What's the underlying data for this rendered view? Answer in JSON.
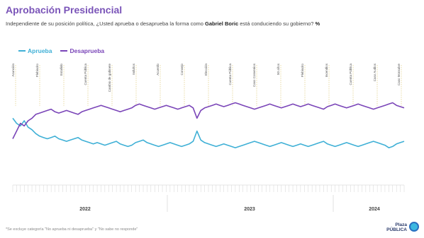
{
  "title": "Aprobación Presidencial",
  "subtitle_pre": "Independiente de su posición política, ¿Usted aprueba o desaprueba la forma como ",
  "subtitle_name": "Gabriel Boric",
  "subtitle_post": " está conduciendo su gobierno? ",
  "subtitle_unit": "%",
  "footnote": "*Se excluye categoría \"No aprueba ni desaprueba\" y \"No sabe no responde\"",
  "logo_text": "Plaza PÚBLICA",
  "colors": {
    "aprueba": "#3fb0d6",
    "desaprueba": "#7a45b8",
    "title": "#7a54b8"
  },
  "chart_data": {
    "type": "line",
    "x_axis_years": [
      "2022",
      "2023",
      "2024"
    ],
    "ylim": [
      0,
      100
    ],
    "series": [
      {
        "name": "Aprueba",
        "values": [
          52,
          48,
          46,
          50,
          45,
          43,
          40,
          38,
          37,
          36,
          37,
          38,
          36,
          35,
          34,
          35,
          36,
          37,
          35,
          34,
          33,
          32,
          33,
          32,
          31,
          32,
          33,
          34,
          32,
          31,
          30,
          31,
          33,
          34,
          35,
          33,
          32,
          31,
          30,
          31,
          32,
          33,
          32,
          31,
          30,
          31,
          32,
          34,
          42,
          35,
          33,
          32,
          31,
          30,
          31,
          32,
          31,
          30,
          29,
          30,
          31,
          32,
          33,
          34,
          33,
          32,
          31,
          30,
          31,
          32,
          33,
          32,
          31,
          30,
          31,
          32,
          31,
          30,
          31,
          32,
          33,
          34,
          32,
          31,
          30,
          31,
          32,
          33,
          32,
          31,
          30,
          31,
          32,
          33,
          34,
          33,
          32,
          31,
          29,
          30,
          32,
          33,
          34
        ]
      },
      {
        "name": "Desaprueba",
        "values": [
          36,
          42,
          48,
          46,
          50,
          52,
          55,
          56,
          57,
          58,
          59,
          57,
          56,
          57,
          58,
          57,
          56,
          55,
          57,
          58,
          59,
          60,
          61,
          62,
          61,
          60,
          59,
          58,
          57,
          58,
          59,
          60,
          62,
          63,
          62,
          61,
          60,
          59,
          60,
          61,
          62,
          61,
          60,
          59,
          60,
          61,
          62,
          60,
          52,
          58,
          60,
          61,
          62,
          63,
          62,
          61,
          62,
          63,
          64,
          63,
          62,
          61,
          60,
          59,
          60,
          61,
          62,
          63,
          62,
          61,
          60,
          61,
          62,
          63,
          62,
          61,
          62,
          63,
          62,
          61,
          60,
          59,
          61,
          62,
          63,
          62,
          61,
          60,
          61,
          62,
          63,
          62,
          61,
          60,
          59,
          60,
          61,
          62,
          63,
          64,
          62,
          61,
          60
        ]
      }
    ],
    "annotations": [
      "Asunción",
      "Plebiscito",
      "Estallido",
      "Cuenta Pública",
      "Cambio de gabinete",
      "Indultos",
      "Acuerdo",
      "Consejo",
      "Elección",
      "Cuenta Pública",
      "Caso Convenios",
      "50 años",
      "Plebiscito",
      "Incendios",
      "Cuenta Pública",
      "Caso Audios",
      "Caso Monsalve"
    ]
  }
}
